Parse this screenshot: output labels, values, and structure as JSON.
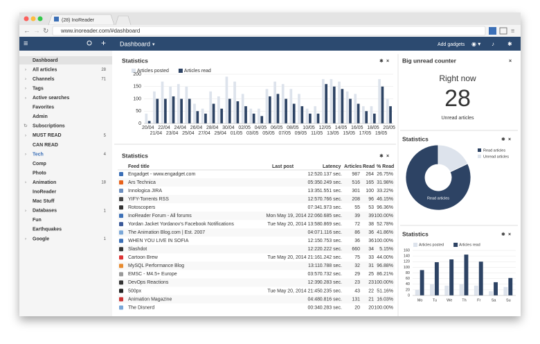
{
  "browser": {
    "tab_title": "(28) InoReader",
    "url": "www.inoreader.com/#dashboard"
  },
  "header": {
    "title": "Dashboard",
    "add_gadgets": "Add gadgets"
  },
  "sidebar": {
    "items": [
      {
        "label": "Dashboard"
      },
      {
        "label": "All articles",
        "count": 28
      },
      {
        "label": "Channels",
        "count": 71
      },
      {
        "label": "Tags"
      },
      {
        "label": "Active searches"
      },
      {
        "label": "Favorites"
      },
      {
        "label": "Admin"
      },
      {
        "label": "Subscriptions"
      },
      {
        "label": "MUST READ",
        "count": 5
      },
      {
        "label": "CAN READ"
      },
      {
        "label": "Tech",
        "count": 4
      },
      {
        "label": "Comp"
      },
      {
        "label": "Photo"
      },
      {
        "label": "Animation",
        "count": 18
      },
      {
        "label": "InoReader"
      },
      {
        "label": "Mac Stuff"
      },
      {
        "label": "Databases",
        "count": 1
      },
      {
        "label": "Fun"
      },
      {
        "label": "Earthquakes"
      },
      {
        "label": "Google",
        "count": 1
      }
    ]
  },
  "chart_data": [
    {
      "type": "bar",
      "title": "Statistics",
      "categories": [
        "20/04",
        "21/04",
        "22/04",
        "23/04",
        "24/04",
        "25/04",
        "26/04",
        "27/04",
        "28/04",
        "29/04",
        "30/04",
        "01/05",
        "02/05",
        "03/05",
        "04/05",
        "05/05",
        "06/05",
        "07/05",
        "08/05",
        "09/05",
        "10/05",
        "11/05",
        "12/05",
        "13/05",
        "14/05",
        "15/05",
        "16/05",
        "17/05",
        "18/05",
        "19/05",
        "20/05"
      ],
      "series": [
        {
          "name": "Articles posted",
          "color": "#dde3ec",
          "values": [
            40,
            130,
            170,
            150,
            160,
            150,
            80,
            60,
            130,
            110,
            190,
            170,
            120,
            60,
            60,
            140,
            170,
            160,
            140,
            120,
            60,
            70,
            180,
            180,
            170,
            130,
            120,
            70,
            70,
            180,
            100
          ]
        },
        {
          "name": "Articles read",
          "color": "#2d4364",
          "values": [
            10,
            100,
            100,
            110,
            100,
            100,
            50,
            40,
            80,
            60,
            100,
            90,
            70,
            40,
            30,
            110,
            120,
            100,
            80,
            70,
            40,
            40,
            160,
            150,
            140,
            100,
            80,
            50,
            40,
            150,
            70
          ]
        }
      ],
      "ylim": [
        0,
        200
      ],
      "yticks": [
        0,
        50,
        100,
        150,
        200
      ],
      "grid": true
    },
    {
      "type": "pie",
      "title": "Statistics",
      "categories": [
        "Read articles",
        "Unread articles"
      ],
      "values": [
        82,
        18
      ],
      "colors": [
        "#2d4364",
        "#dde3ec"
      ]
    },
    {
      "type": "bar",
      "title": "Statistics",
      "categories": [
        "Mo",
        "Tu",
        "We",
        "Th",
        "Fr",
        "Sa",
        "Su"
      ],
      "series": [
        {
          "name": "Articles posted",
          "color": "#dde3ec",
          "values": [
            20,
            40,
            35,
            40,
            35,
            15,
            30
          ]
        },
        {
          "name": "Articles read",
          "color": "#2d4364",
          "values": [
            90,
            118,
            128,
            145,
            120,
            47,
            62
          ]
        }
      ],
      "ylim": [
        0,
        160
      ],
      "yticks": [
        0,
        20,
        40,
        60,
        80,
        100,
        120,
        140,
        160
      ],
      "grid": true
    }
  ],
  "table": {
    "title": "Statistics",
    "columns": [
      "Feed title",
      "Last post",
      "Latency",
      "Articles",
      "Read",
      "% Read"
    ],
    "rows": [
      [
        "Engadget - www.engadget.com",
        "12:52",
        "0.137 sec.",
        "987",
        "264",
        "26.75%"
      ],
      [
        "Ars Technica",
        "05:35",
        "0.249 sec.",
        "516",
        "165",
        "31.98%"
      ],
      [
        "Innologica JIRA",
        "13:35",
        "1.551 sec.",
        "301",
        "100",
        "33.22%"
      ],
      [
        "YIFY-Torrents RSS",
        "12:57",
        "0.766 sec.",
        "208",
        "96",
        "46.15%"
      ],
      [
        "Rotoscopers",
        "07:34",
        "1.973 sec.",
        "55",
        "53",
        "96.36%"
      ],
      [
        "InoReader Forum - All forums",
        "Mon May 19, 2014 22:06",
        "0.685 sec.",
        "39",
        "39",
        "100.00%"
      ],
      [
        "Yordan Jacket Yordanov's Facebook Notifications",
        "Tue May 20, 2014 13:58",
        "0.869 sec.",
        "72",
        "38",
        "52.78%"
      ],
      [
        "The Animation Blog.com | Est. 2007",
        "04:07",
        "1.116 sec.",
        "86",
        "36",
        "41.86%"
      ],
      [
        "WHEN YOU LIVE IN SOFIA",
        "12:15",
        "0.753 sec.",
        "36",
        "36",
        "100.00%"
      ],
      [
        "Slashdot",
        "12:22",
        "0.222 sec.",
        "660",
        "34",
        "5.15%"
      ],
      [
        "Cartoon Brew",
        "Tue May 20, 2014 21:16",
        "1.242 sec.",
        "75",
        "33",
        "44.00%"
      ],
      [
        "MySQL Performance Blog",
        "13:11",
        "0.788 sec.",
        "32",
        "31",
        "96.88%"
      ],
      [
        "EMSC - M4.5+ Europe",
        "03:57",
        "0.732 sec.",
        "29",
        "25",
        "86.21%"
      ],
      [
        "DevOps Reactions",
        "12:39",
        "0.283 sec.",
        "23",
        "23",
        "100.00%"
      ],
      [
        "500px",
        "Tue May 20, 2014 21:45",
        "0.235 sec.",
        "43",
        "22",
        "51.16%"
      ],
      [
        "Animation Magazine",
        "04:48",
        "0.816 sec.",
        "131",
        "21",
        "16.03%"
      ],
      [
        "The Disnerd",
        "00:34",
        "0.283 sec.",
        "20",
        "20",
        "100.00%"
      ]
    ]
  },
  "counter": {
    "title": "Big unread counter",
    "subtitle": "Right now",
    "value": 28,
    "label": "Unread articles"
  }
}
